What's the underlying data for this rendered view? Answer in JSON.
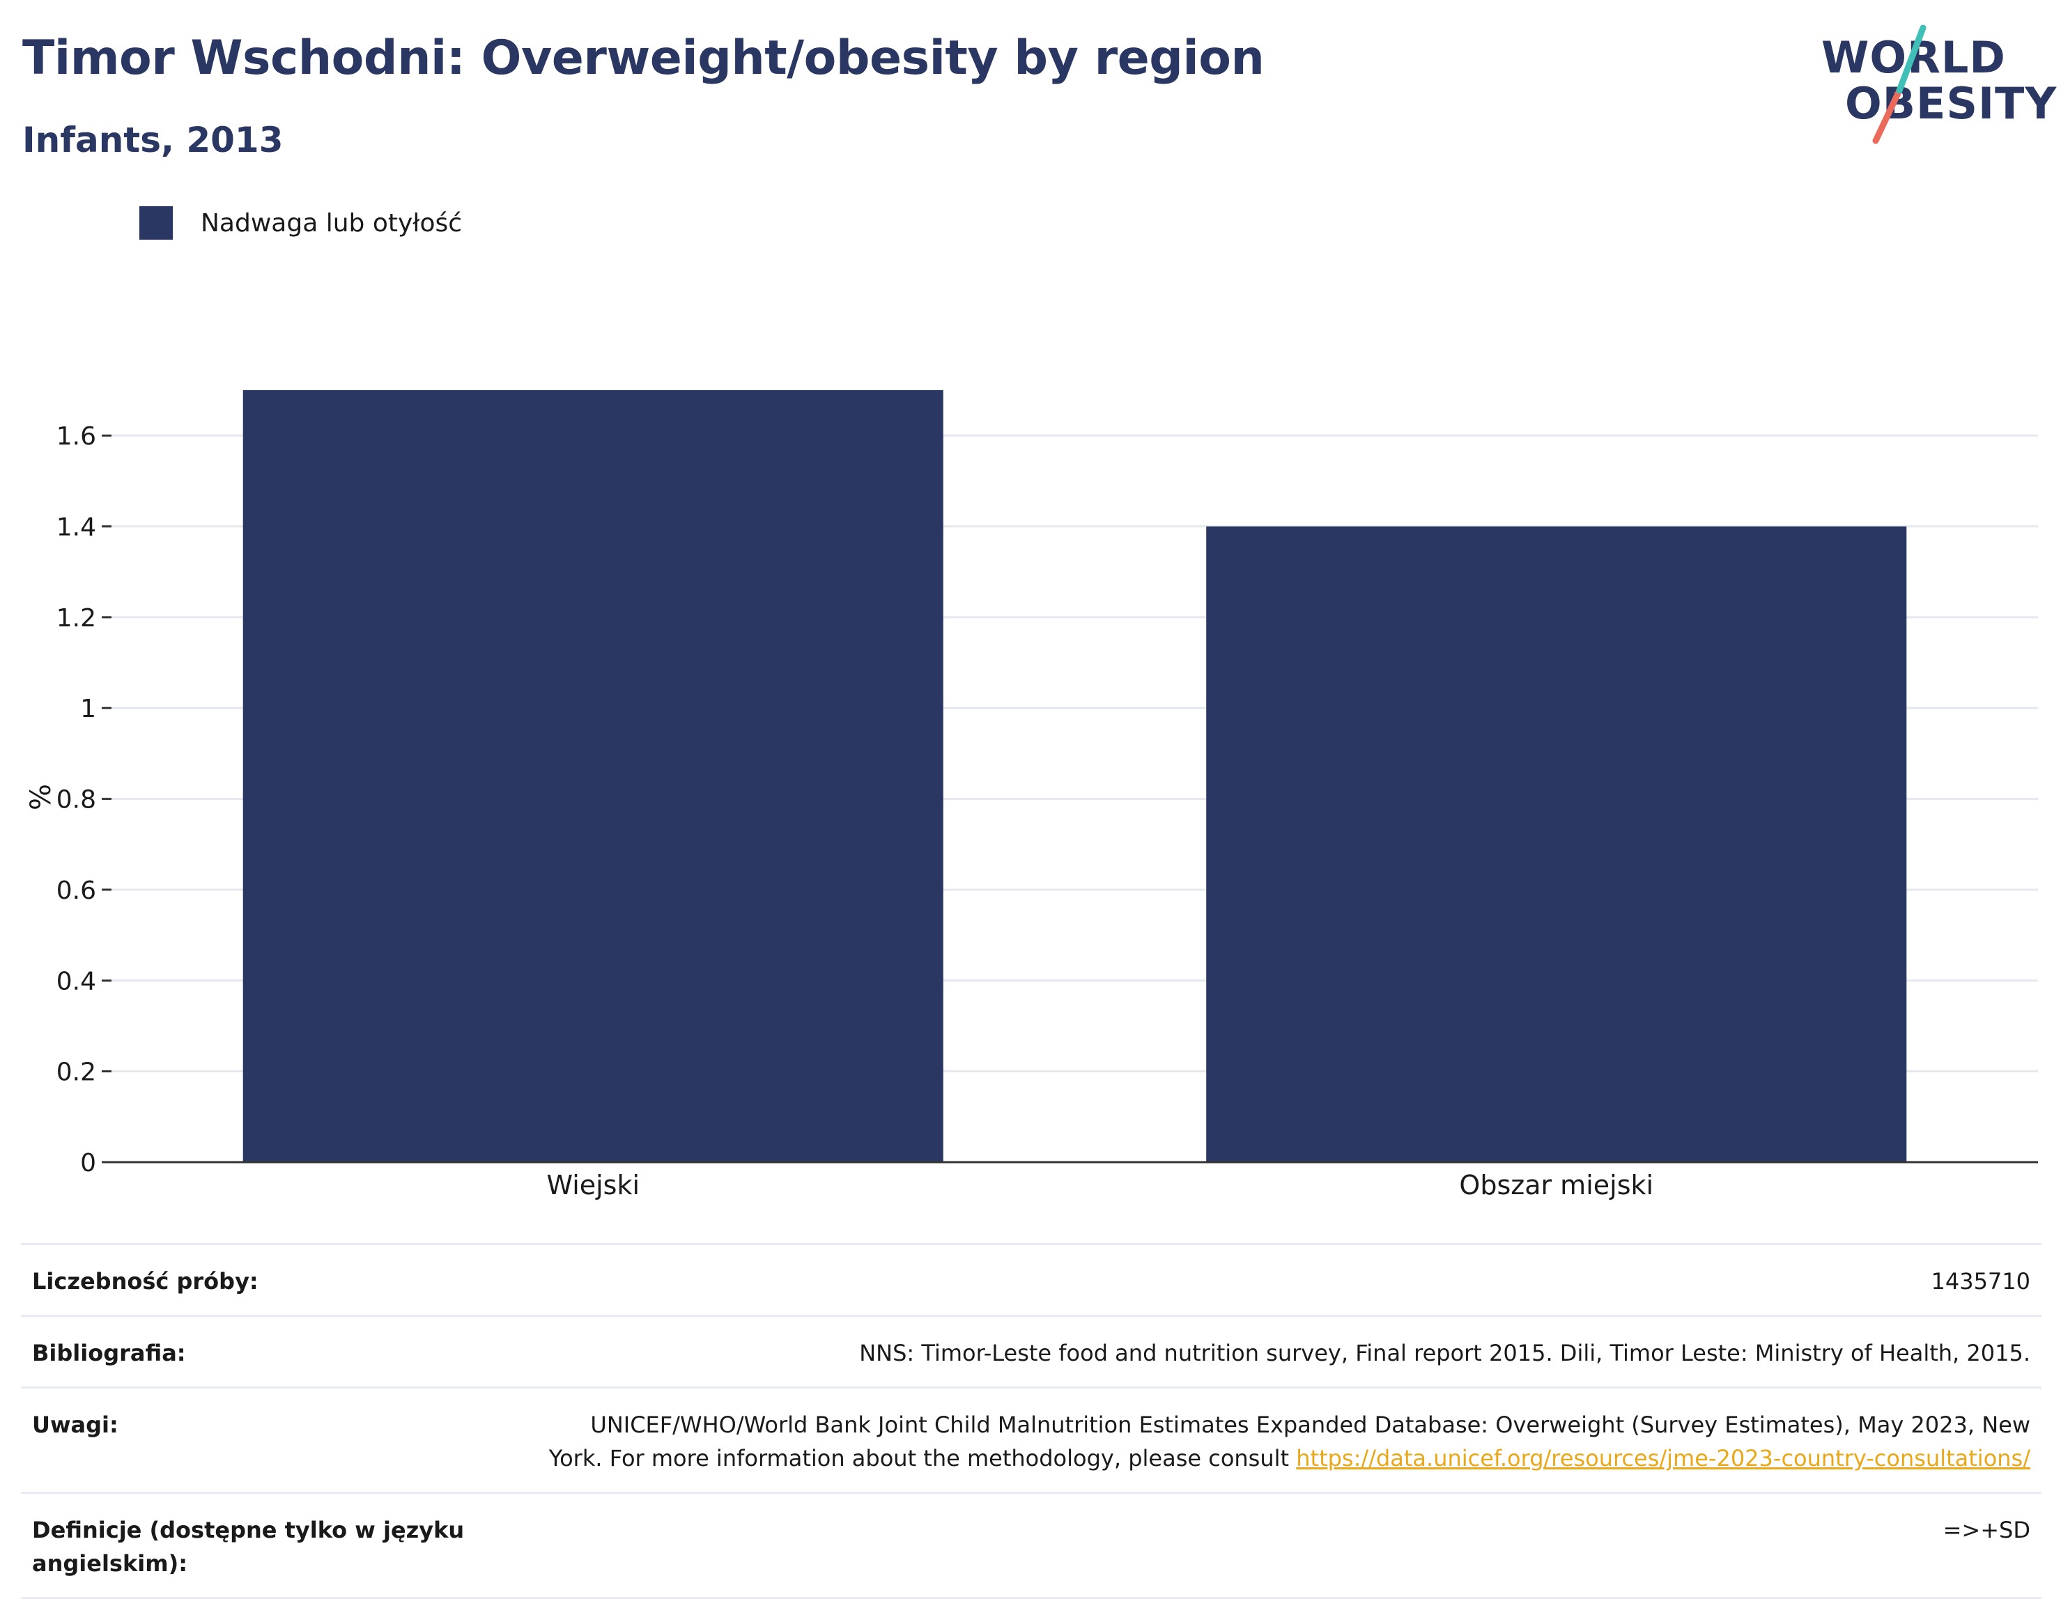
{
  "header": {
    "title": "Timor Wschodni: Overweight/obesity by region",
    "subtitle": "Infants, 2013"
  },
  "logo": {
    "line1": "WORLD",
    "line2": "OBESITY"
  },
  "legend": {
    "label": "Nadwaga lub otyłość",
    "color": "#2b3763"
  },
  "chart_data": {
    "type": "bar",
    "categories": [
      "Wiejski",
      "Obszar miejski"
    ],
    "series": [
      {
        "name": "Nadwaga lub otyłość",
        "values": [
          1.7,
          1.4
        ],
        "color": "#2b3763"
      }
    ],
    "ylabel": "%",
    "ylim": [
      0,
      1.7
    ],
    "yticks": [
      0,
      0.2,
      0.4,
      0.6,
      0.8,
      1,
      1.2,
      1.4,
      1.6
    ],
    "ytick_labels": [
      "0",
      "0.2",
      "0.4",
      "0.6",
      "0.8",
      "1",
      "1.2",
      "1.4",
      "1.6"
    ],
    "grid": true
  },
  "info": {
    "sample_label": "Liczebność próby:",
    "sample_value": "1435710",
    "bibliography_label": "Bibliografia:",
    "bibliography_value": "NNS: Timor-Leste food and nutrition survey, Final report 2015. Dili, Timor Leste: Ministry of Health, 2015.",
    "notes_label": "Uwagi:",
    "notes_value_line1": "UNICEF/WHO/World Bank Joint Child Malnutrition Estimates Expanded Database: Overweight (Survey Estimates), May 2023, New",
    "notes_value_line2": "York. For more information about the methodology, please consult",
    "notes_link": "https://data.unicef.org/resources/jme-2023-country-consultations/",
    "definitions_label": "Definicje (dostępne tylko w języku angielskim):",
    "definitions_value": "=>+SD"
  }
}
